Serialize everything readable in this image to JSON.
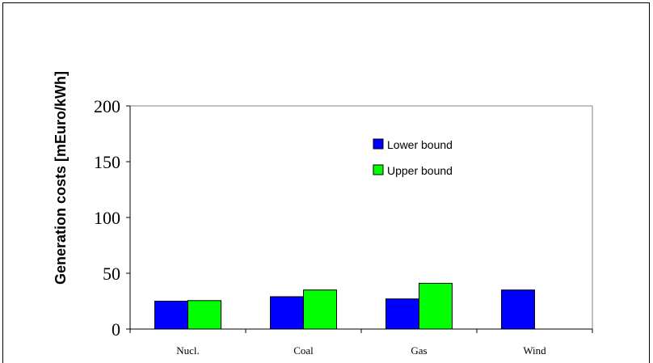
{
  "chart_data": {
    "type": "bar",
    "title": "",
    "xlabel": "",
    "ylabel": "Generation costs [mEuro/kWh]",
    "ylim": [
      0,
      200
    ],
    "yticks": [
      0,
      50,
      100,
      150,
      200
    ],
    "categories": [
      "Nucl.",
      "Coal",
      "Gas",
      "Wind"
    ],
    "series": [
      {
        "name": "Lower bound",
        "color": "#0000ff",
        "values": [
          25,
          29,
          27,
          35
        ]
      },
      {
        "name": "Upper bound",
        "color": "#00ff00",
        "values": [
          25.5,
          35,
          41,
          null
        ]
      }
    ],
    "legend": "inside-top-right",
    "grid": false
  }
}
